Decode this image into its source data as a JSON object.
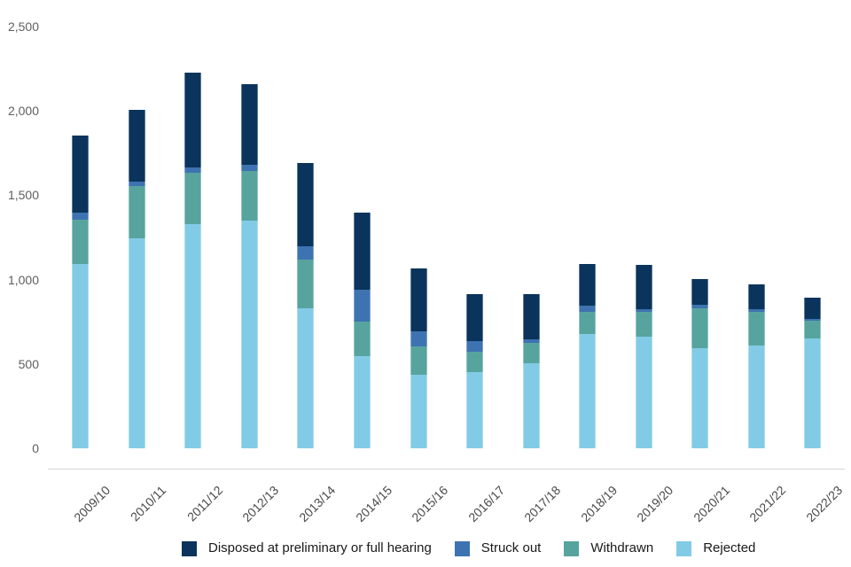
{
  "chart_data": {
    "type": "bar",
    "stacked": true,
    "title": "",
    "xlabel": "",
    "ylabel": "",
    "categories": [
      "2009/10",
      "2010/11",
      "2011/12",
      "2012/13",
      "2013/14",
      "2014/15",
      "2015/16",
      "2016/17",
      "2017/18",
      "2018/19",
      "2019/20",
      "2020/21",
      "2021/22",
      "2022/23"
    ],
    "series": [
      {
        "name": "Rejected",
        "color": "#82CBE6",
        "values": [
          1090,
          1245,
          1330,
          1350,
          830,
          545,
          435,
          450,
          505,
          680,
          660,
          595,
          610,
          650
        ]
      },
      {
        "name": "Withdrawn",
        "color": "#57A49E",
        "values": [
          265,
          310,
          305,
          295,
          290,
          205,
          170,
          120,
          120,
          130,
          150,
          235,
          200,
          105
        ]
      },
      {
        "name": "Struck out",
        "color": "#3E73B1",
        "values": [
          40,
          25,
          30,
          35,
          80,
          190,
          90,
          65,
          20,
          35,
          15,
          20,
          15,
          10
        ]
      },
      {
        "name": "Disposed at preliminary or full hearing",
        "color": "#0A345B",
        "values": [
          460,
          425,
          560,
          480,
          490,
          455,
          370,
          280,
          270,
          250,
          260,
          155,
          145,
          130
        ]
      }
    ],
    "totals": [
      1855,
      2005,
      2225,
      2160,
      1690,
      1395,
      1065,
      915,
      915,
      1095,
      1085,
      1005,
      970,
      895
    ],
    "ylim": [
      0,
      2500
    ],
    "ytick_labels": [
      "0",
      "500",
      "1,000",
      "1,500",
      "2,000",
      "2,500"
    ],
    "ytick_values": [
      0,
      500,
      1000,
      1500,
      2000,
      2500
    ],
    "grid": false,
    "legend_position": "bottom",
    "legend_order": [
      "Disposed at preliminary or full hearing",
      "Struck out",
      "Withdrawn",
      "Rejected"
    ]
  },
  "colors": {
    "background": "#ffffff",
    "axis_line": "#d6d6d6",
    "ytick_text": "#5f5f5f",
    "xtick_text": "#4a4a4a",
    "legend_text": "#1a1a1a"
  }
}
